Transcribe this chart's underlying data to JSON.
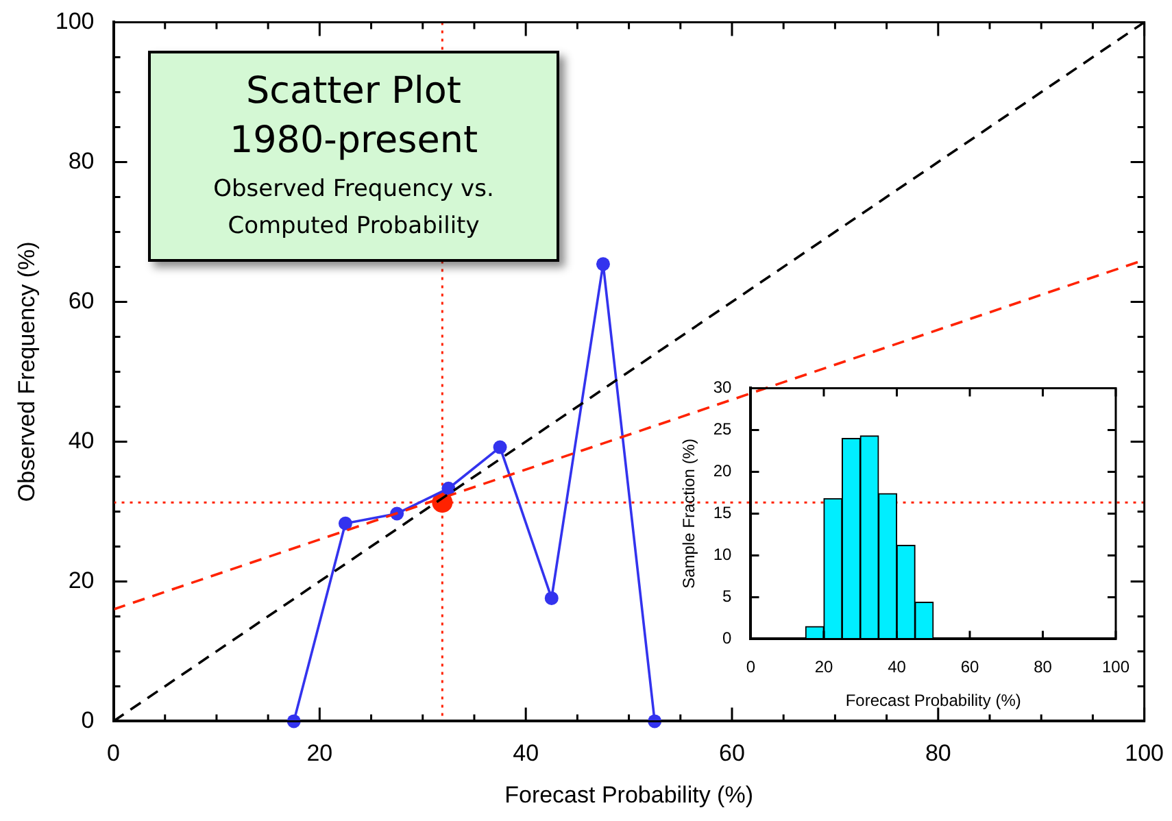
{
  "chart_data": [
    {
      "type": "line",
      "title": "Scatter Plot 1980-present",
      "subtitle": "Observed Frequency vs. Computed Probability",
      "xlabel": "Forecast Probability (%)",
      "ylabel": "Observed Frequency (%)",
      "xlim": [
        0,
        100
      ],
      "ylim": [
        0,
        100
      ],
      "xticks": [
        0,
        {
          "value": 5,
          "label": null
        },
        {
          "value": 10,
          "label": null
        },
        {
          "value": 15,
          "label": null
        },
        20,
        {
          "value": 25,
          "label": null
        },
        {
          "value": 30,
          "label": null
        },
        {
          "value": 35,
          "label": null
        },
        40,
        {
          "value": 45,
          "label": null
        },
        {
          "value": 50,
          "label": null
        },
        {
          "value": 55,
          "label": null
        },
        60,
        {
          "value": 65,
          "label": null
        },
        {
          "value": 70,
          "label": null
        },
        {
          "value": 75,
          "label": null
        },
        80,
        {
          "value": 85,
          "label": null
        },
        {
          "value": 90,
          "label": null
        },
        {
          "value": 95,
          "label": null
        },
        100
      ],
      "yticks": [
        0,
        {
          "value": 5,
          "label": null
        },
        {
          "value": 10,
          "label": null
        },
        {
          "value": 15,
          "label": null
        },
        20,
        {
          "value": 25,
          "label": null
        },
        {
          "value": 30,
          "label": null
        },
        {
          "value": 35,
          "label": null
        },
        40,
        {
          "value": 45,
          "label": null
        },
        {
          "value": 50,
          "label": null
        },
        {
          "value": 55,
          "label": null
        },
        60,
        {
          "value": 65,
          "label": null
        },
        {
          "value": 70,
          "label": null
        },
        {
          "value": 75,
          "label": null
        },
        80,
        {
          "value": 85,
          "label": null
        },
        {
          "value": 90,
          "label": null
        },
        {
          "value": 95,
          "label": null
        },
        100
      ],
      "legend": false,
      "series": [
        {
          "type": "line",
          "color": "#000000",
          "x": [
            0,
            100
          ],
          "values": [
            0,
            100
          ],
          "marker": "none",
          "line_style": "dashed"
        },
        {
          "type": "line",
          "color": "#ff2200",
          "x": [
            0,
            100
          ],
          "values": [
            16,
            66
          ],
          "marker": "none",
          "line_style": "dashed"
        },
        {
          "type": "line",
          "color": "#3333ee",
          "x": [
            17.5,
            22.5,
            27.5,
            32.5,
            37.5,
            42.5,
            47.5,
            52.5
          ],
          "values": [
            0,
            28.3,
            29.7,
            33.3,
            39.2,
            17.6,
            65.4,
            0
          ],
          "marker": "circle",
          "line_style": "solid"
        },
        {
          "type": "scatter",
          "color": "#ff2200",
          "x": [
            31.9
          ],
          "values": [
            31.3
          ],
          "marker": "circle"
        }
      ],
      "ref_lines": [
        {
          "axis": "x",
          "value": 31.9,
          "color": "#ff2200",
          "line_style": "dotted"
        },
        {
          "axis": "y",
          "value": 31.3,
          "color": "#ff2200",
          "line_style": "dotted"
        }
      ]
    },
    {
      "type": "histogram",
      "xlabel": "Forecast Probability (%)",
      "ylabel": "Sample Fraction (%)",
      "xlim": [
        0,
        100
      ],
      "ylim": [
        0,
        30
      ],
      "xticks": [
        0,
        20,
        40,
        60,
        80,
        100
      ],
      "yticks": [
        0,
        5,
        10,
        15,
        20,
        25,
        30
      ],
      "color": "#00eeff",
      "bins": [
        15,
        20,
        25,
        30,
        35,
        40,
        45,
        50
      ],
      "values": [
        1.5,
        16.8,
        24,
        24.3,
        17.4,
        11.2,
        4.4
      ]
    }
  ]
}
